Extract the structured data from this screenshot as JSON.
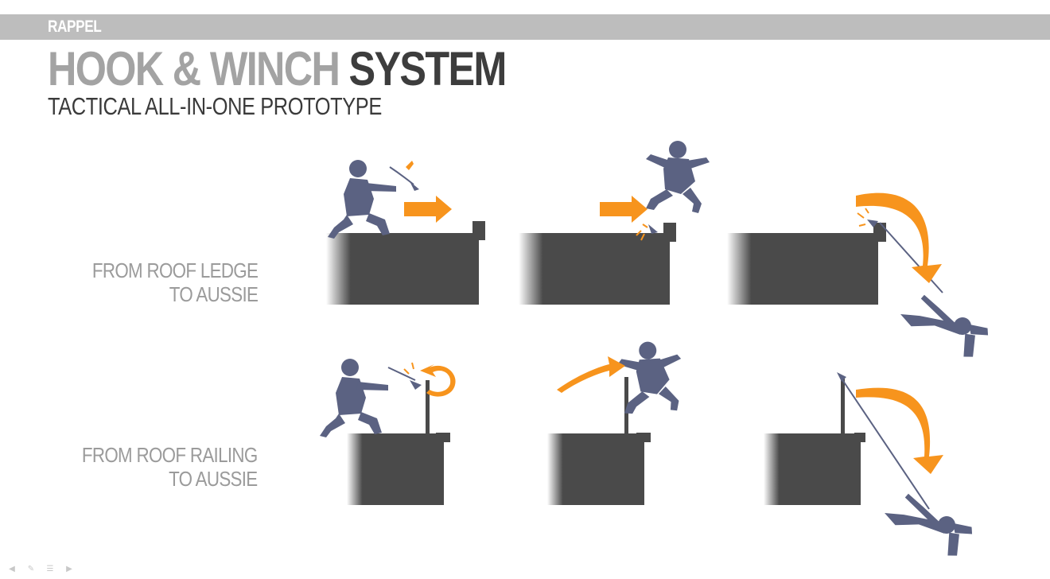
{
  "header": {
    "section_label": "RAPPEL",
    "title_part1": "HOOK & WINCH",
    "title_part2": "SYSTEM",
    "subtitle": "TACTICAL ALL-IN-ONE PROTOTYPE"
  },
  "rows": [
    {
      "label_line1": "FROM ROOF LEDGE",
      "label_line2": "TO AUSSIE"
    },
    {
      "label_line1": "FROM ROOF RAILING",
      "label_line2": "TO AUSSIE"
    }
  ],
  "colors": {
    "accent": "#f7941d",
    "figure": "#5b6282",
    "building": "#4a4a4a",
    "bar": "#bdbdbd",
    "title_light": "#a3a3a3",
    "title_dark": "#3d3d3d"
  },
  "footer": {
    "icons": [
      "back-arrow-icon",
      "pen-icon",
      "menu-icon",
      "forward-arrow-icon"
    ]
  }
}
